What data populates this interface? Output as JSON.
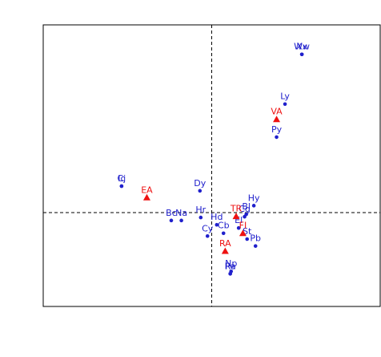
{
  "chart_data": {
    "type": "scatter",
    "title": "",
    "xlabel": "",
    "ylabel": "",
    "xlim": [
      -1.0,
      1.0
    ],
    "ylim": [
      -0.5,
      1.0
    ],
    "grid": false,
    "reference_lines": {
      "x": 0,
      "y": 0
    },
    "colors": {
      "site": "#2020cc",
      "factor": "#ee1111"
    },
    "series": [
      {
        "marker": "circle",
        "color": "#2020cc",
        "points": [
          {
            "label": "Xx",
            "x": 0.535,
            "y": 0.843
          },
          {
            "label": "Ww",
            "x": 0.535,
            "y": 0.843
          },
          {
            "label": "Ly",
            "x": 0.435,
            "y": 0.578
          },
          {
            "label": "Py",
            "x": 0.385,
            "y": 0.402
          },
          {
            "label": "Ic",
            "x": -0.535,
            "y": 0.141
          },
          {
            "label": "Cj",
            "x": -0.535,
            "y": 0.141
          },
          {
            "label": "Dy",
            "x": -0.07,
            "y": 0.116
          },
          {
            "label": "Hy",
            "x": 0.25,
            "y": 0.037
          },
          {
            "label": "Bl",
            "x": 0.205,
            "y": -0.009
          },
          {
            "label": "Cg",
            "x": 0.195,
            "y": -0.022
          },
          {
            "label": "Hr",
            "x": -0.065,
            "y": -0.026
          },
          {
            "label": "Bc",
            "x": -0.24,
            "y": -0.042
          },
          {
            "label": "Na",
            "x": -0.18,
            "y": -0.042
          },
          {
            "label": "Hd",
            "x": 0.03,
            "y": -0.065
          },
          {
            "label": "El",
            "x": 0.16,
            "y": -0.082
          },
          {
            "label": "Cb",
            "x": 0.07,
            "y": -0.11
          },
          {
            "label": "Cy",
            "x": -0.025,
            "y": -0.125
          },
          {
            "label": "St",
            "x": 0.21,
            "y": -0.141
          },
          {
            "label": "Pb",
            "x": 0.26,
            "y": -0.178
          },
          {
            "label": "Np",
            "x": 0.115,
            "y": -0.313
          },
          {
            "label": "Ra",
            "x": 0.11,
            "y": -0.326
          },
          {
            "label": "Pe",
            "x": 0.11,
            "y": -0.326
          }
        ]
      },
      {
        "marker": "triangle",
        "color": "#ee1111",
        "points": [
          {
            "label": "VA",
            "x": 0.385,
            "y": 0.497
          },
          {
            "label": "EA",
            "x": -0.385,
            "y": 0.08
          },
          {
            "label": "TR",
            "x": 0.145,
            "y": -0.02
          },
          {
            "label": "FI",
            "x": 0.185,
            "y": -0.11
          },
          {
            "label": "RA",
            "x": 0.08,
            "y": -0.205
          }
        ]
      }
    ]
  }
}
